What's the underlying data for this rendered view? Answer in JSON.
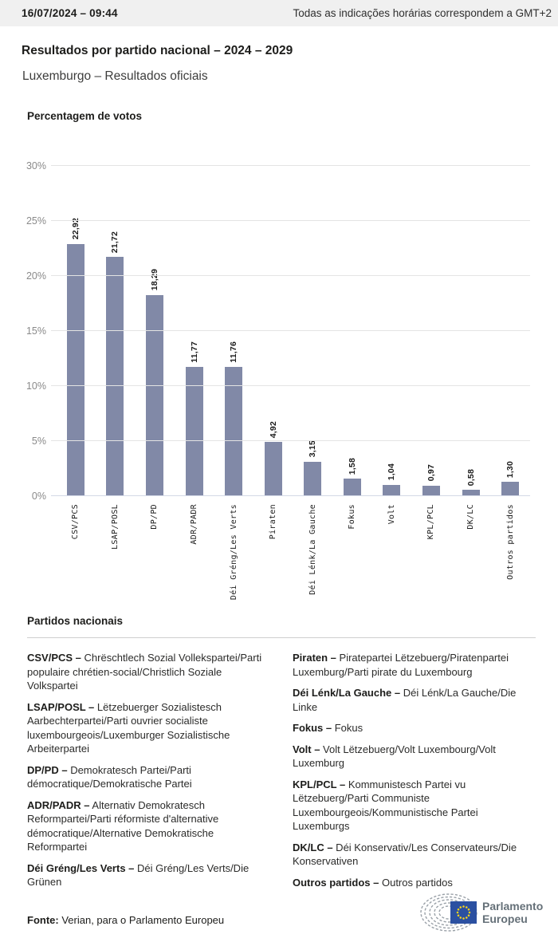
{
  "header": {
    "datetime": "16/07/2024 – 09:44",
    "timezone_note": "Todas as indicações horárias correspondem a GMT+2"
  },
  "title": "Resultados por partido nacional – 2024 – 2029",
  "subtitle": "Luxemburgo – Resultados oficiais",
  "chart_data": {
    "type": "bar",
    "title": "Percentagem de votos",
    "categories": [
      "CSV/PCS",
      "LSAP/POSL",
      "DP/PD",
      "ADR/PADR",
      "Déi Gréng/Les Verts",
      "Piraten",
      "Déi Lénk/La Gauche",
      "Fokus",
      "Volt",
      "KPL/PCL",
      "DK/LC",
      "Outros partidos"
    ],
    "values": [
      22.92,
      21.72,
      18.29,
      11.77,
      11.76,
      4.92,
      3.15,
      1.58,
      1.04,
      0.97,
      0.58,
      1.3
    ],
    "value_labels": [
      "22,92",
      "21,72",
      "18,29",
      "11,77",
      "11,76",
      "4,92",
      "3,15",
      "1,58",
      "1,04",
      "0,97",
      "0,58",
      "1,30"
    ],
    "ylim": [
      0,
      30
    ],
    "yticks": [
      0,
      5,
      10,
      15,
      20,
      25,
      30
    ],
    "ytick_labels": [
      "0%",
      "5%",
      "10%",
      "15%",
      "20%",
      "25%",
      "30%"
    ],
    "xlabel": "",
    "ylabel": "",
    "grid": true,
    "legend": false,
    "bar_color": "#8189a7"
  },
  "parties_section": {
    "heading": "Partidos nacionais",
    "columns": {
      "left": [
        {
          "name": "CSV/PCS –",
          "desc": "Chrëschtlech Sozial Vollekspartei/Parti populaire chrétien-social/Christlich Soziale Volkspartei"
        },
        {
          "name": "LSAP/POSL –",
          "desc": "Lëtzebuerger Sozialistesch Aarbechterpartei/Parti ouvrier socialiste luxembourgeois/Luxemburger Sozialistische Arbeiterpartei"
        },
        {
          "name": "DP/PD –",
          "desc": "Demokratesch Partei/Parti démocratique/Demokratische Partei"
        },
        {
          "name": "ADR/PADR –",
          "desc": "Alternativ Demokratesch Reformpartei/Parti réformiste d'alternative démocratique/Alternative Demokratische Reformpartei"
        },
        {
          "name": "Déi Gréng/Les Verts –",
          "desc": "Déi Gréng/Les Verts/Die Grünen"
        }
      ],
      "right": [
        {
          "name": "Piraten –",
          "desc": "Piratepartei Lëtzebuerg/Piratenpartei Luxemburg/Parti pirate du Luxembourg"
        },
        {
          "name": "Déi Lénk/La Gauche –",
          "desc": "Déi Lénk/La Gauche/Die Linke"
        },
        {
          "name": "Fokus –",
          "desc": "Fokus"
        },
        {
          "name": "Volt –",
          "desc": "Volt Lëtzebuerg/Volt Luxembourg/Volt Luxemburg"
        },
        {
          "name": "KPL/PCL –",
          "desc": "Kommunistesch Partei vu Lëtzebuerg/Parti Communiste Luxembourgeois/Kommunistische Partei Luxemburgs"
        },
        {
          "name": "DK/LC –",
          "desc": "Déi Konservativ/Les Conservateurs/Die Konservativen"
        },
        {
          "name": "Outros partidos –",
          "desc": "Outros partidos"
        }
      ]
    }
  },
  "footer": {
    "source_label": "Fonte:",
    "source_text": " Verian, para o Parlamento Europeu",
    "logo_line1": "Parlamento",
    "logo_line2": "Europeu"
  },
  "colors": {
    "bar": "#8189a7",
    "gridline": "#e4e4e4",
    "baseline": "#d3d9e6",
    "topbar_bg": "#f0f0f0",
    "eu_flag_blue": "#2b50a1",
    "eu_star_yellow": "#ffd617",
    "logo_gray": "#9aa1a8"
  }
}
